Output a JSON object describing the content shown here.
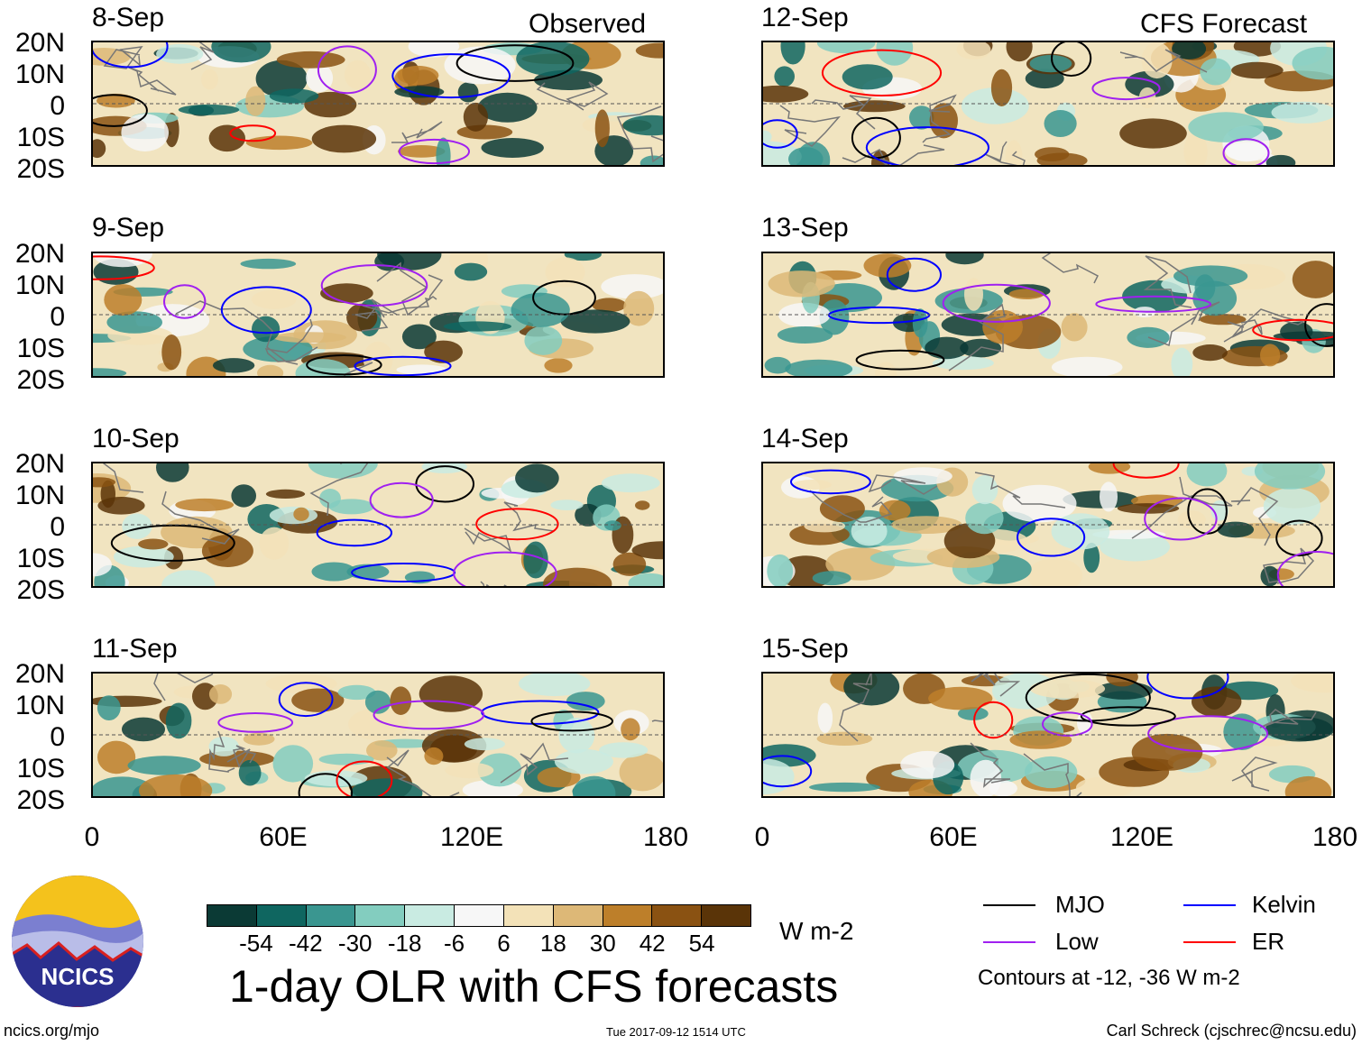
{
  "left_header": "Observed",
  "right_header": "CFS Forecast",
  "panels": [
    {
      "date": "8-Sep"
    },
    {
      "date": "9-Sep"
    },
    {
      "date": "10-Sep"
    },
    {
      "date": "11-Sep"
    },
    {
      "date": "12-Sep"
    },
    {
      "date": "13-Sep"
    },
    {
      "date": "14-Sep"
    },
    {
      "date": "15-Sep"
    }
  ],
  "lat_labels": [
    "20N",
    "10N",
    "0",
    "10S",
    "20S"
  ],
  "lon_labels": [
    "0",
    "60E",
    "120E",
    "180"
  ],
  "colorbar": {
    "ticks": [
      "-54",
      "-42",
      "-30",
      "-18",
      "-6",
      "6",
      "18",
      "30",
      "42",
      "54"
    ],
    "colors": [
      "#0b3a35",
      "#0f6660",
      "#3a9690",
      "#83cdbf",
      "#c9ebe2",
      "#f7f7f7",
      "#f3e2b8",
      "#ddb877",
      "#bd7f2a",
      "#8a5212",
      "#5a3408"
    ],
    "units": "W m-2"
  },
  "title": "1-day OLR with CFS forecasts",
  "legend": {
    "items": [
      {
        "label": "MJO",
        "color": "#000000"
      },
      {
        "label": "Kelvin",
        "color": "#0000ff"
      },
      {
        "label": "Low",
        "color": "#a020f0"
      },
      {
        "label": "ER",
        "color": "#ff0000"
      }
    ],
    "contours_note": "Contours at -12, -36 W m-2"
  },
  "logo_text": "NCICS",
  "footer": {
    "url": "ncics.org/mjo",
    "timestamp": "Tue 2017-09-12 1514 UTC",
    "author": "Carl Schreck (cjschrec@ncsu.edu)"
  }
}
